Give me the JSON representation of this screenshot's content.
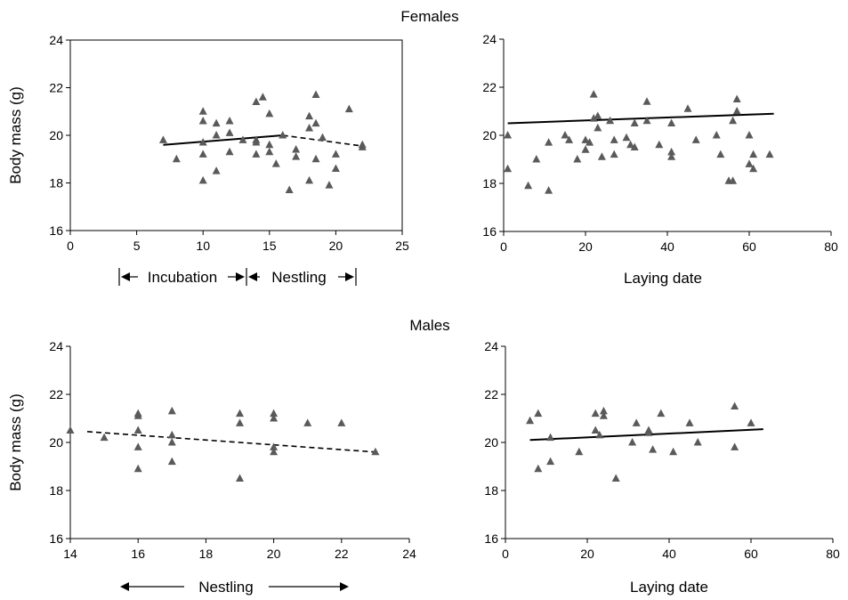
{
  "figure": {
    "females_title": "Females",
    "males_title": "Males"
  },
  "chart_data": [
    {
      "id": "females_days",
      "type": "scatter",
      "section": "Females",
      "xlabel": "",
      "ylabel": "Body mass (g)",
      "xlim": [
        0,
        25
      ],
      "ylim": [
        16,
        24
      ],
      "xticks": [
        0,
        5,
        10,
        15,
        20,
        25
      ],
      "yticks": [
        16,
        18,
        20,
        22,
        24
      ],
      "phase_labels": [
        "Incubation",
        "Nestling"
      ],
      "points": [
        [
          7,
          19.8
        ],
        [
          8,
          19.0
        ],
        [
          10,
          21.0
        ],
        [
          10,
          20.6
        ],
        [
          10,
          19.7
        ],
        [
          10,
          19.2
        ],
        [
          10,
          18.1
        ],
        [
          11,
          20.5
        ],
        [
          11,
          20.0
        ],
        [
          11,
          18.5
        ],
        [
          12,
          20.6
        ],
        [
          12,
          20.1
        ],
        [
          12,
          19.3
        ],
        [
          13,
          19.8
        ],
        [
          14,
          21.4
        ],
        [
          14,
          19.8
        ],
        [
          14,
          19.7
        ],
        [
          14,
          19.2
        ],
        [
          14.5,
          21.6
        ],
        [
          15,
          20.9
        ],
        [
          15,
          19.6
        ],
        [
          15,
          19.3
        ],
        [
          15.5,
          18.8
        ],
        [
          16,
          20.0
        ],
        [
          16.5,
          17.7
        ],
        [
          17,
          19.1
        ],
        [
          17,
          19.4
        ],
        [
          18,
          20.8
        ],
        [
          18,
          20.3
        ],
        [
          18,
          18.1
        ],
        [
          18.5,
          21.7
        ],
        [
          18.5,
          20.5
        ],
        [
          18.5,
          19.0
        ],
        [
          19,
          19.9
        ],
        [
          19.5,
          17.9
        ],
        [
          20,
          19.2
        ],
        [
          20,
          18.6
        ],
        [
          21,
          21.1
        ],
        [
          22,
          19.6
        ],
        [
          22,
          19.5
        ]
      ],
      "trend_lines": [
        {
          "style": "solid",
          "x": [
            7,
            16
          ],
          "y": [
            19.6,
            20.0
          ]
        },
        {
          "style": "dashed",
          "x": [
            16,
            22
          ],
          "y": [
            20.0,
            19.55
          ]
        }
      ]
    },
    {
      "id": "females_laying",
      "type": "scatter",
      "section": "Females",
      "xlabel": "Laying date",
      "ylabel": "",
      "xlim": [
        0,
        80
      ],
      "ylim": [
        16,
        24
      ],
      "xticks": [
        0,
        20,
        40,
        60,
        80
      ],
      "yticks": [
        16,
        18,
        20,
        22,
        24
      ],
      "points": [
        [
          1,
          20.0
        ],
        [
          1,
          18.6
        ],
        [
          6,
          17.9
        ],
        [
          8,
          19.0
        ],
        [
          11,
          19.7
        ],
        [
          11,
          17.7
        ],
        [
          15,
          20.0
        ],
        [
          16,
          19.8
        ],
        [
          18,
          19.0
        ],
        [
          20,
          19.8
        ],
        [
          20,
          19.4
        ],
        [
          21,
          19.7
        ],
        [
          22,
          21.7
        ],
        [
          22,
          20.7
        ],
        [
          23,
          20.8
        ],
        [
          23,
          20.3
        ],
        [
          24,
          19.1
        ],
        [
          26,
          20.6
        ],
        [
          27,
          19.8
        ],
        [
          27,
          19.2
        ],
        [
          30,
          19.9
        ],
        [
          31,
          19.6
        ],
        [
          32,
          20.5
        ],
        [
          32,
          19.5
        ],
        [
          35,
          21.4
        ],
        [
          35,
          20.6
        ],
        [
          38,
          19.6
        ],
        [
          41,
          20.5
        ],
        [
          41,
          19.3
        ],
        [
          41,
          19.1
        ],
        [
          45,
          21.1
        ],
        [
          47,
          19.8
        ],
        [
          52,
          20.0
        ],
        [
          53,
          19.2
        ],
        [
          55,
          18.1
        ],
        [
          56,
          20.6
        ],
        [
          56,
          18.1
        ],
        [
          57,
          21.5
        ],
        [
          57,
          21.0
        ],
        [
          60,
          20.0
        ],
        [
          60,
          18.8
        ],
        [
          61,
          19.2
        ],
        [
          61,
          18.6
        ],
        [
          65,
          19.2
        ]
      ],
      "trend_lines": [
        {
          "style": "solid",
          "x": [
            1,
            66
          ],
          "y": [
            20.5,
            20.9
          ]
        }
      ]
    },
    {
      "id": "males_days",
      "type": "scatter",
      "section": "Males",
      "xlabel": "",
      "ylabel": "Body mass (g)",
      "xlim": [
        14,
        24
      ],
      "ylim": [
        16,
        24
      ],
      "xticks": [
        14,
        16,
        18,
        20,
        22,
        24
      ],
      "yticks": [
        16,
        18,
        20,
        22,
        24
      ],
      "phase_labels": [
        "Nestling"
      ],
      "points": [
        [
          14,
          20.5
        ],
        [
          15,
          20.2
        ],
        [
          16,
          21.2
        ],
        [
          16,
          21.1
        ],
        [
          16,
          20.5
        ],
        [
          16,
          19.8
        ],
        [
          16,
          18.9
        ],
        [
          17,
          21.3
        ],
        [
          17,
          20.3
        ],
        [
          17,
          20.0
        ],
        [
          17,
          19.2
        ],
        [
          19,
          21.2
        ],
        [
          19,
          20.8
        ],
        [
          19,
          18.5
        ],
        [
          20,
          21.2
        ],
        [
          20,
          21.0
        ],
        [
          20,
          19.8
        ],
        [
          20,
          19.6
        ],
        [
          21,
          20.8
        ],
        [
          22,
          20.8
        ],
        [
          23,
          19.6
        ]
      ],
      "trend_lines": [
        {
          "style": "dashed",
          "x": [
            14.5,
            23
          ],
          "y": [
            20.45,
            19.6
          ]
        }
      ]
    },
    {
      "id": "males_laying",
      "type": "scatter",
      "section": "Males",
      "xlabel": "Laying date",
      "ylabel": "",
      "xlim": [
        0,
        80
      ],
      "ylim": [
        16,
        24
      ],
      "xticks": [
        0,
        20,
        40,
        60,
        80
      ],
      "yticks": [
        16,
        18,
        20,
        22,
        24
      ],
      "points": [
        [
          6,
          20.9
        ],
        [
          8,
          21.2
        ],
        [
          8,
          18.9
        ],
        [
          11,
          20.2
        ],
        [
          11,
          19.2
        ],
        [
          18,
          19.6
        ],
        [
          22,
          21.2
        ],
        [
          22,
          20.5
        ],
        [
          23,
          20.3
        ],
        [
          24,
          21.3
        ],
        [
          24,
          21.1
        ],
        [
          27,
          18.5
        ],
        [
          31,
          20.0
        ],
        [
          32,
          20.8
        ],
        [
          35,
          20.5
        ],
        [
          35,
          20.4
        ],
        [
          36,
          19.7
        ],
        [
          38,
          21.2
        ],
        [
          41,
          19.6
        ],
        [
          45,
          20.8
        ],
        [
          47,
          20.0
        ],
        [
          56,
          21.5
        ],
        [
          56,
          19.8
        ],
        [
          60,
          20.8
        ]
      ],
      "trend_lines": [
        {
          "style": "solid",
          "x": [
            6,
            63
          ],
          "y": [
            20.1,
            20.55
          ]
        }
      ]
    }
  ]
}
